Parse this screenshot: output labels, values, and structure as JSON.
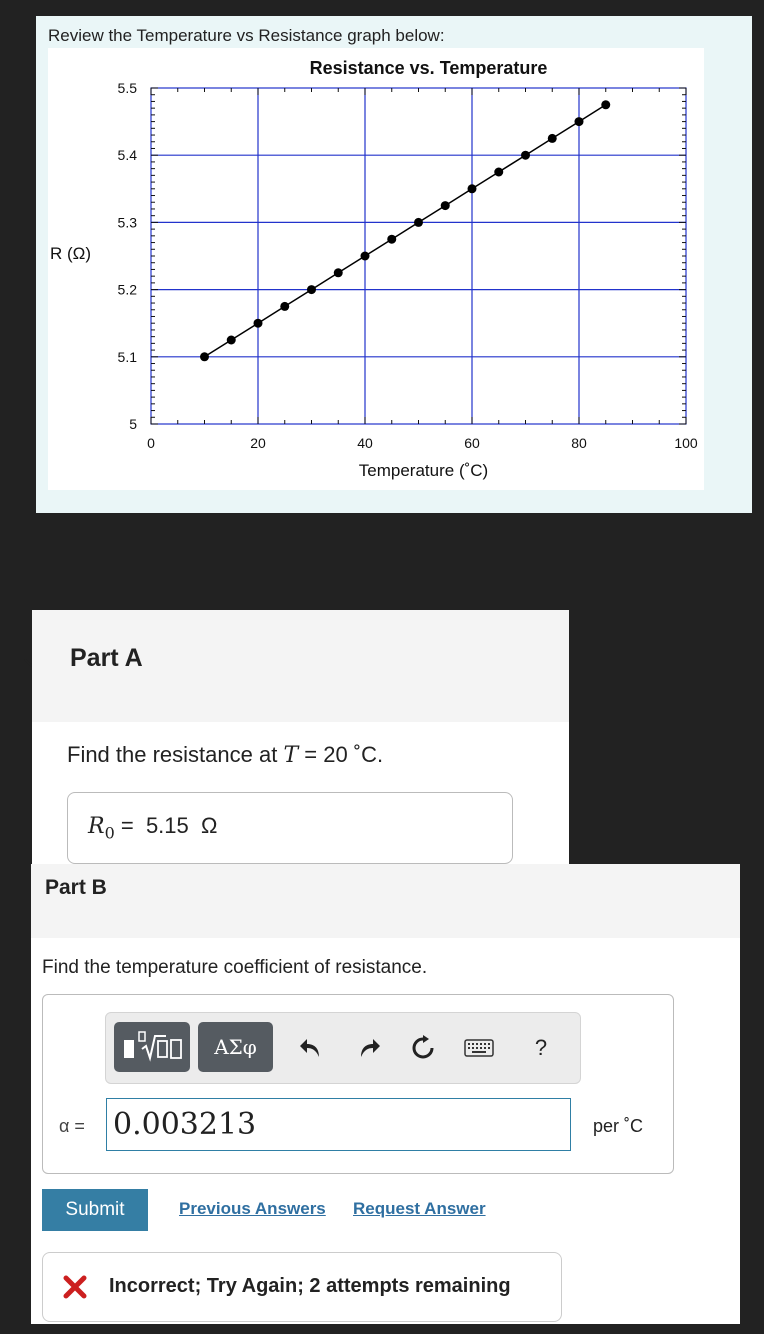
{
  "graph_card": {
    "caption": "Review the Temperature vs Resistance graph below:"
  },
  "chart_data": {
    "type": "scatter",
    "title": "Resistance vs. Temperature",
    "xlabel": "Temperature (˚C)",
    "ylabel": "R (Ω)",
    "xlim": [
      0,
      100
    ],
    "ylim": [
      5,
      5.5
    ],
    "xticks": [
      "0",
      "20",
      "40",
      "60",
      "80",
      "100"
    ],
    "yticks": [
      "5",
      "5.1",
      "5.2",
      "5.3",
      "5.4",
      "5.5"
    ],
    "grid": true,
    "grid_color": "#2233cc",
    "series": [
      {
        "x": [
          10,
          15,
          20,
          25,
          30,
          35,
          40,
          45,
          50,
          55,
          60,
          65,
          70,
          75,
          80,
          85
        ],
        "y": [
          5.1,
          5.125,
          5.15,
          5.175,
          5.2,
          5.225,
          5.25,
          5.275,
          5.3,
          5.325,
          5.35,
          5.375,
          5.4,
          5.425,
          5.45,
          5.475
        ],
        "line": true,
        "color": "#000000"
      }
    ]
  },
  "part_a": {
    "title": "Part A",
    "prompt_text": "Find the resistance at",
    "prompt_var": "T",
    "prompt_value": " = 20 ˚C.",
    "answer_var": "R",
    "answer_sub": "0",
    "answer_value": " =  5.15  Ω"
  },
  "part_b": {
    "title": "Part B",
    "prompt": "Find the temperature coefficient of resistance.",
    "toolbar": {
      "symbols_label": "ΑΣφ",
      "help_label": "?"
    },
    "answer_label": "α =",
    "answer_value": "0.003213",
    "unit": "per ˚C",
    "submit_label": "Submit",
    "previous_answers_label": "Previous Answers",
    "request_answer_label": "Request Answer",
    "feedback": "Incorrect; Try Again; 2 attempts remaining",
    "feedback_color": "#cc1f1f"
  }
}
